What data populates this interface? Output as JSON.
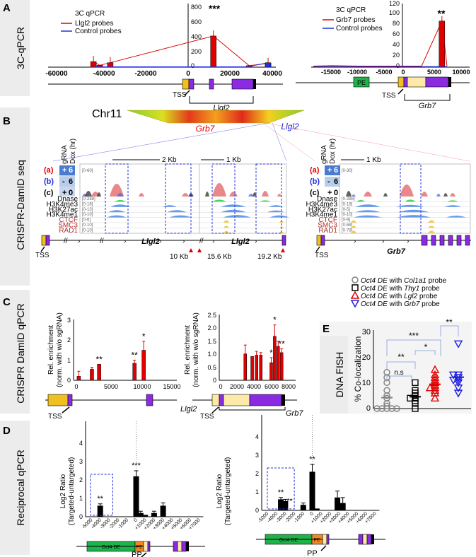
{
  "panels": {
    "A": {
      "letter": "A",
      "side": "3C-qPCR"
    },
    "B": {
      "letter": "B",
      "side": "CRISPR-DamID seq"
    },
    "C": {
      "letter": "C",
      "side": "CRISPR DamID qPCR"
    },
    "D": {
      "letter": "D",
      "side": "Reciprocal qPCR"
    },
    "E": {
      "letter": "E",
      "side": "DNA FISH"
    }
  },
  "panelA": {
    "left": {
      "legend_title": "3C qPCR",
      "legend": [
        {
          "name": "Llgl2 probes",
          "color": "#e00000"
        },
        {
          "name": "Control probes",
          "color": "#2030e0"
        }
      ],
      "sig": "***",
      "gene": "Llgl2",
      "tss": "TSS",
      "x_ticks": [
        "-60000",
        "-40000",
        "-20000",
        "0",
        "20000",
        "40000"
      ],
      "y_ticks": [
        "0",
        "200",
        "400",
        "600",
        "800"
      ]
    },
    "right": {
      "legend_title": "3C qPCR",
      "legend": [
        {
          "name": "Grb7 probes",
          "color": "#e00000"
        },
        {
          "name": "Control probes",
          "color": "#2030e0"
        }
      ],
      "sig": "**",
      "gene": "Grb7",
      "pe": "PE",
      "tss": "TSS",
      "x_ticks": [
        "-15000",
        "-10000",
        "-5000",
        "0",
        "5000",
        "10000"
      ],
      "y_ticks": [
        "0",
        "20",
        "40",
        "60",
        "80",
        "100",
        "120"
      ]
    }
  },
  "panelB": {
    "chr": "Chr11",
    "grb7": "Grb7",
    "llgl2": "Llgl2",
    "header": {
      "gRNA": "gRNA",
      "dox": "Dox (hr)"
    },
    "rows": [
      {
        "id": "(a)",
        "sign": "+",
        "dox": "6",
        "color": "#e00000",
        "box": "#4a7bd0"
      },
      {
        "id": "(b)",
        "sign": "-",
        "dox": "6",
        "color": "#2030e0",
        "box": "#b8cde8"
      },
      {
        "id": "(c)",
        "sign": "+",
        "dox": "0",
        "color": "#000000",
        "box": "none"
      }
    ],
    "tracks_left": [
      {
        "name": "Dnase",
        "color": "#000000",
        "range": "[0-288]"
      },
      {
        "name": "H3K4me3",
        "color": "#000000",
        "range": "[0-18]"
      },
      {
        "name": "H3K27ac",
        "color": "#000000",
        "range": "[0-13]"
      },
      {
        "name": "H3K4me1",
        "color": "#000000",
        "range": "[0-10]"
      },
      {
        "name": "CTCF",
        "color": "#b03030",
        "range": "[0-6]"
      },
      {
        "name": "SMC3",
        "color": "#b03030",
        "range": "[0-10]"
      },
      {
        "name": "RAD1",
        "color": "#b03030",
        "range": "[0-10]"
      }
    ],
    "tracks_right": [
      {
        "name": "Dnase",
        "color": "#000000",
        "range": "[0-288]"
      },
      {
        "name": "H3K4me3",
        "color": "#000000",
        "range": "[0-18]"
      },
      {
        "name": "H3K27ac",
        "color": "#000000",
        "range": "[0-5]"
      },
      {
        "name": "H3K4me1",
        "color": "#000000",
        "range": "[0-10]"
      },
      {
        "name": "CTCF",
        "color": "#b03030",
        "range": "[0-9]"
      },
      {
        "name": "SMC3",
        "color": "#b03030",
        "range": "[0-68]"
      },
      {
        "name": "RAD1",
        "color": "#b03030",
        "range": "[0-78]"
      }
    ],
    "damid_range_left": "[0-60]",
    "damid_range_right": "[0-30]",
    "scale1": "2 Kb",
    "scale2": "1 Kb",
    "scale3": "1 Kb",
    "kb10": "10 Kb",
    "kb156": "15.6 Kb",
    "kb192": "19.2 Kb",
    "tss": "TSS"
  },
  "panelC": {
    "left": {
      "ylabel1": "Rel. enrichment",
      "ylabel2": "(norm. with w/o sgRNA)",
      "y_ticks": [
        "0",
        "1",
        "2",
        "3"
      ],
      "x_ticks": [
        "0",
        "5000",
        "10000",
        "15000"
      ],
      "gene": "Llgl2",
      "tss": "TSS",
      "sigs": [
        "**",
        "**",
        "*"
      ]
    },
    "right": {
      "ylabel1": "Rel. enrichment",
      "ylabel2": "(norm. with w/o sgRNA)",
      "y_ticks": [
        "0",
        "0.5",
        "1.0",
        "1.5",
        "2.0",
        "2.5"
      ],
      "x_ticks": [
        "0",
        "2000",
        "4000",
        "6000",
        "8000"
      ],
      "gene": "Grb7",
      "tss": "TSS",
      "sigs": [
        "*",
        "*",
        "**"
      ]
    }
  },
  "panelD": {
    "ylabel1": "Log2 Ratio",
    "ylabel2": "(Targeted-untargeted)",
    "x_ticks": [
      "-5000",
      "-4000",
      "-3000",
      "-2000",
      "-1000",
      "0",
      "+1000",
      "+2000",
      "+3000",
      "+4000",
      "+5000",
      "+6000",
      "+7000"
    ],
    "left": {
      "y_ticks": [
        "0",
        "1",
        "2",
        "3",
        "4"
      ],
      "sigs": [
        "**",
        "***"
      ],
      "oct4": "Oct4 DE",
      "pe": "PE",
      "pp": "PP"
    },
    "right": {
      "y_ticks": [
        "0",
        "1",
        "2",
        "3",
        "4"
      ],
      "sigs": [
        "**",
        "**",
        "**"
      ],
      "oct4": "Oct4 DE",
      "pe": "PE",
      "pp": "PP"
    }
  },
  "panelE": {
    "legend": [
      {
        "name": "Oct4 DE with",
        "probe": "Col1a1",
        "suffix": "probe",
        "color": "#808080",
        "shape": "circle"
      },
      {
        "name": "Oct4 DE with",
        "probe": "Thy1",
        "suffix": "probe",
        "color": "#000000",
        "shape": "square"
      },
      {
        "name": "Oct4 DE with",
        "probe": "Lgl2",
        "suffix": "probe",
        "color": "#e00000",
        "shape": "triangle-up"
      },
      {
        "name": "Oct4 DE with",
        "probe": "Grb7",
        "suffix": "probe",
        "color": "#1a1ae0",
        "shape": "triangle-down"
      }
    ],
    "ylabel": "% Co-localization",
    "y_ticks": [
      "0",
      "10",
      "20",
      "30"
    ],
    "sigs": [
      "***",
      "**",
      "**",
      "*",
      "n.s"
    ]
  },
  "chart_data": [
    {
      "type": "line",
      "title": "3C qPCR Llgl2",
      "xlabel": "",
      "ylabel": "",
      "xlim": [
        -60000,
        40000
      ],
      "ylim": [
        0,
        800
      ],
      "series": [
        {
          "name": "Llgl2 probes",
          "x": [
            -45000,
            -42000,
            -37000,
            12000,
            29000,
            38000
          ],
          "values": [
            75,
            25,
            60,
            420,
            20,
            50
          ]
        },
        {
          "name": "Control probes",
          "x": [
            -45000,
            -37000,
            12000,
            28000,
            38000
          ],
          "values": [
            5,
            5,
            5,
            5,
            60
          ]
        }
      ]
    },
    {
      "type": "line",
      "title": "3C qPCR Grb7",
      "xlabel": "",
      "ylabel": "",
      "xlim": [
        -15000,
        10000
      ],
      "ylim": [
        0,
        120
      ],
      "series": [
        {
          "name": "Grb7 probes",
          "x": [
            -14000,
            -11000,
            -7000,
            -4000,
            3000,
            6200,
            7000
          ],
          "values": [
            2,
            3,
            2,
            2,
            2,
            90,
            2
          ]
        },
        {
          "name": "Control probes",
          "x": [
            -14000,
            -11000,
            -7000,
            -4000,
            3000,
            6200,
            7000
          ],
          "values": [
            1,
            1,
            1,
            1,
            1,
            1,
            1
          ]
        }
      ]
    },
    {
      "type": "bar",
      "title": "CRISPR DamID qPCR Llgl2",
      "ylabel": "Rel. enrichment (norm. with w/o sgRNA)",
      "ylim": [
        0,
        3
      ],
      "x": [
        800,
        2800,
        3900,
        9300,
        10700
      ],
      "values": [
        0.2,
        0.55,
        0.8,
        0.85,
        1.5
      ]
    },
    {
      "type": "bar",
      "title": "CRISPR DamID qPCR Grb7",
      "ylabel": "Rel. enrichment (norm. with w/o sgRNA)",
      "ylim": [
        0,
        2.5
      ],
      "x": [
        3000,
        3800,
        4300,
        4800,
        6000,
        6400,
        6800,
        7200
      ],
      "values": [
        1.05,
        0.95,
        1.0,
        1.0,
        0.7,
        1.75,
        1.35,
        1.1
      ]
    },
    {
      "type": "bar",
      "title": "Reciprocal qPCR Llgl2",
      "ylabel": "Log2 Ratio (Targeted-untargeted)",
      "ylim": [
        0,
        4
      ],
      "x": [
        -4000,
        0,
        500,
        1000,
        2000,
        3000
      ],
      "values": [
        0.6,
        2.2,
        0.2,
        0.1,
        0.2,
        0.6
      ]
    },
    {
      "type": "bar",
      "title": "Reciprocal qPCR Grb7",
      "ylabel": "Log2 Ratio (Targeted-untargeted)",
      "ylim": [
        0,
        4
      ],
      "x": [
        -3500,
        -3000,
        -1000,
        0,
        500,
        2800,
        3400
      ],
      "values": [
        0.6,
        0.5,
        0.3,
        2.1,
        0.1,
        0.7,
        0.4
      ]
    },
    {
      "type": "scatter",
      "title": "DNA FISH",
      "ylabel": "% Co-localization",
      "ylim": [
        0,
        30
      ],
      "series": [
        {
          "name": "Col1a1",
          "values": [
            0,
            0,
            0,
            0,
            0,
            1,
            2,
            4,
            5,
            7,
            10,
            12,
            14
          ]
        },
        {
          "name": "Thy1",
          "values": [
            0,
            2,
            3,
            4,
            4,
            5,
            6,
            7,
            10
          ]
        },
        {
          "name": "Lgl2",
          "values": [
            4,
            6,
            7,
            8,
            8,
            9,
            10,
            11,
            12,
            13,
            15
          ]
        },
        {
          "name": "Grb7",
          "values": [
            6,
            8,
            10,
            11,
            11,
            12,
            13,
            13,
            25
          ]
        }
      ]
    }
  ]
}
